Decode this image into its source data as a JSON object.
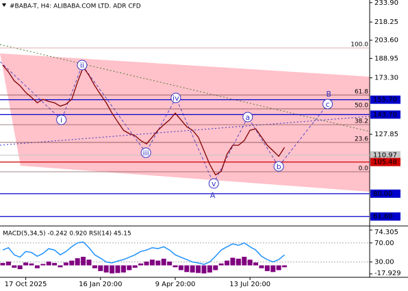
{
  "chart_data": [
    {
      "type": "line",
      "title": "#BABA-T, H4:  ALIBABA.COM LTD. ADR CFD",
      "color": "#800000",
      "categories": [
        null,
        null,
        null,
        null,
        "17 Oct 2025",
        null,
        null,
        null,
        null,
        null,
        null,
        null,
        null,
        null,
        null,
        null,
        null,
        "16 Jan 20:00",
        null,
        null,
        null,
        null,
        null,
        null,
        null,
        null,
        null,
        null,
        null,
        null,
        "9 Apr 20:00",
        null,
        null,
        null,
        null,
        null,
        null,
        null,
        null,
        null,
        null,
        null,
        null,
        "13 Jul 20:00",
        null,
        null,
        null,
        null,
        null,
        null,
        null,
        null,
        null,
        null,
        null,
        null,
        null,
        null,
        null,
        null,
        null,
        null,
        null,
        null
      ],
      "values": [
        183.6,
        178,
        170.9,
        167,
        161.5,
        157.6,
        153.2,
        156,
        154.3,
        153.2,
        150.5,
        152.1,
        156,
        169.8,
        182,
        175.3,
        167,
        159.9,
        153.2,
        144.9,
        137.8,
        131.1,
        128.4,
        126.7,
        122.8,
        120.1,
        125.6,
        131.1,
        135.5,
        139.4,
        144.9,
        139.4,
        133.9,
        131.1,
        125.6,
        114.6,
        103.5,
        95.2,
        98,
        111.8,
        119,
        119,
        122.8,
        131.1,
        132.2,
        125.6,
        119,
        114.6,
        110.1,
        117.3,
        null,
        null,
        null,
        null,
        null,
        null,
        null,
        null,
        null,
        null,
        null,
        null,
        null,
        null
      ],
      "ylim": [
        54,
        236
      ],
      "yticks": [
        {
          "value": 233.9,
          "label": "233.90"
        },
        218.25,
        {
          "value": 203.6,
          "label": "203.60"
        },
        188.95,
        {
          "value": 173.3,
          "label": "173.30"
        },
        127.85
      ],
      "levels": [
        {
          "value": 155.7,
          "label": "155.70",
          "color": "#0000cc"
        },
        {
          "value": 143.7,
          "label": "143.70",
          "color": "#0000cc"
        },
        {
          "value": 110.97,
          "label": "110.97",
          "color": "#c8c8c8"
        },
        {
          "value": 105.48,
          "label": "105.48",
          "color": "#d00000"
        },
        {
          "value": 80,
          "label": "80.00",
          "color": "#0000cc"
        },
        {
          "value": 61.6,
          "label": "61.60",
          "color": "#0000cc"
        }
      ],
      "fibonacci": {
        "color": "#a05050",
        "levels": [
          {
            "value": 197.4,
            "label": "100.0"
          },
          {
            "value": 159.4,
            "label": "61.8"
          },
          {
            "value": 148.3,
            "label": "50.0"
          },
          {
            "value": 135.6,
            "label": "38.2"
          },
          {
            "value": 121.3,
            "label": "23.6"
          },
          {
            "value": 97.6,
            "label": "0.0"
          }
        ]
      },
      "annotations": [
        {
          "text": "ii",
          "index": 13.8,
          "value": 183.6,
          "circled": true
        },
        {
          "text": "i",
          "index": 10.2,
          "value": 139.5,
          "circled": true
        },
        {
          "text": "iii",
          "index": 24.9,
          "value": 113,
          "circled": true
        },
        {
          "text": "iv",
          "index": 30.1,
          "value": 157.1,
          "circled": true
        },
        {
          "text": "v",
          "index": 36.7,
          "value": 88.2,
          "circled": true
        },
        {
          "text": "a",
          "index": 42.6,
          "value": 141.7,
          "circled": true
        },
        {
          "text": "b",
          "index": 48,
          "value": 102,
          "circled": true
        },
        {
          "text": "c",
          "index": 56.5,
          "value": 152.2,
          "circled": true
        },
        {
          "text": "A",
          "index": 36.5,
          "value": 78.8,
          "circled": false
        },
        {
          "text": "B",
          "index": 56.7,
          "value": 160.5,
          "circled": false
        }
      ]
    },
    {
      "type": "macd",
      "title": "MACD(5,34,5) -0.242 0.920 RSI(14) 45.15",
      "ylim": [
        -17.929,
        74.305
      ],
      "yticks": [
        {
          "value": 74.305,
          "label": "74.305"
        },
        {
          "value": -17.929,
          "label": "-17.929"
        }
      ],
      "y2lim": [
        5,
        97
      ],
      "y2ticks": [
        {
          "value": 70,
          "label": "70.00"
        },
        {
          "value": 30,
          "label": "30.00"
        }
      ],
      "series": [
        {
          "name": "MACD",
          "color": "#800080",
          "values": [
            5,
            8,
            -5,
            -8,
            6,
            4,
            -6,
            3,
            8,
            5,
            -4,
            6,
            10,
            15,
            18,
            12,
            -6,
            -12,
            -15,
            -17,
            -16,
            -15,
            -10,
            -5,
            4,
            8,
            12,
            10,
            14,
            8,
            -4,
            -10,
            -14,
            -15,
            -16,
            -17,
            -15,
            -10,
            4,
            10,
            16,
            14,
            18,
            12,
            6,
            -6,
            -12,
            -14,
            -10,
            -4
          ]
        },
        {
          "name": "RSI",
          "color": "#1e90ff",
          "axis": "y2",
          "values": [
            55,
            60,
            45,
            40,
            52,
            50,
            42,
            48,
            58,
            55,
            45,
            52,
            62,
            70,
            72,
            60,
            45,
            38,
            30,
            28,
            32,
            35,
            40,
            45,
            52,
            55,
            60,
            58,
            62,
            55,
            45,
            40,
            35,
            30,
            28,
            25,
            30,
            42,
            55,
            62,
            68,
            65,
            70,
            62,
            55,
            42,
            35,
            30,
            35,
            45
          ]
        }
      ]
    }
  ]
}
